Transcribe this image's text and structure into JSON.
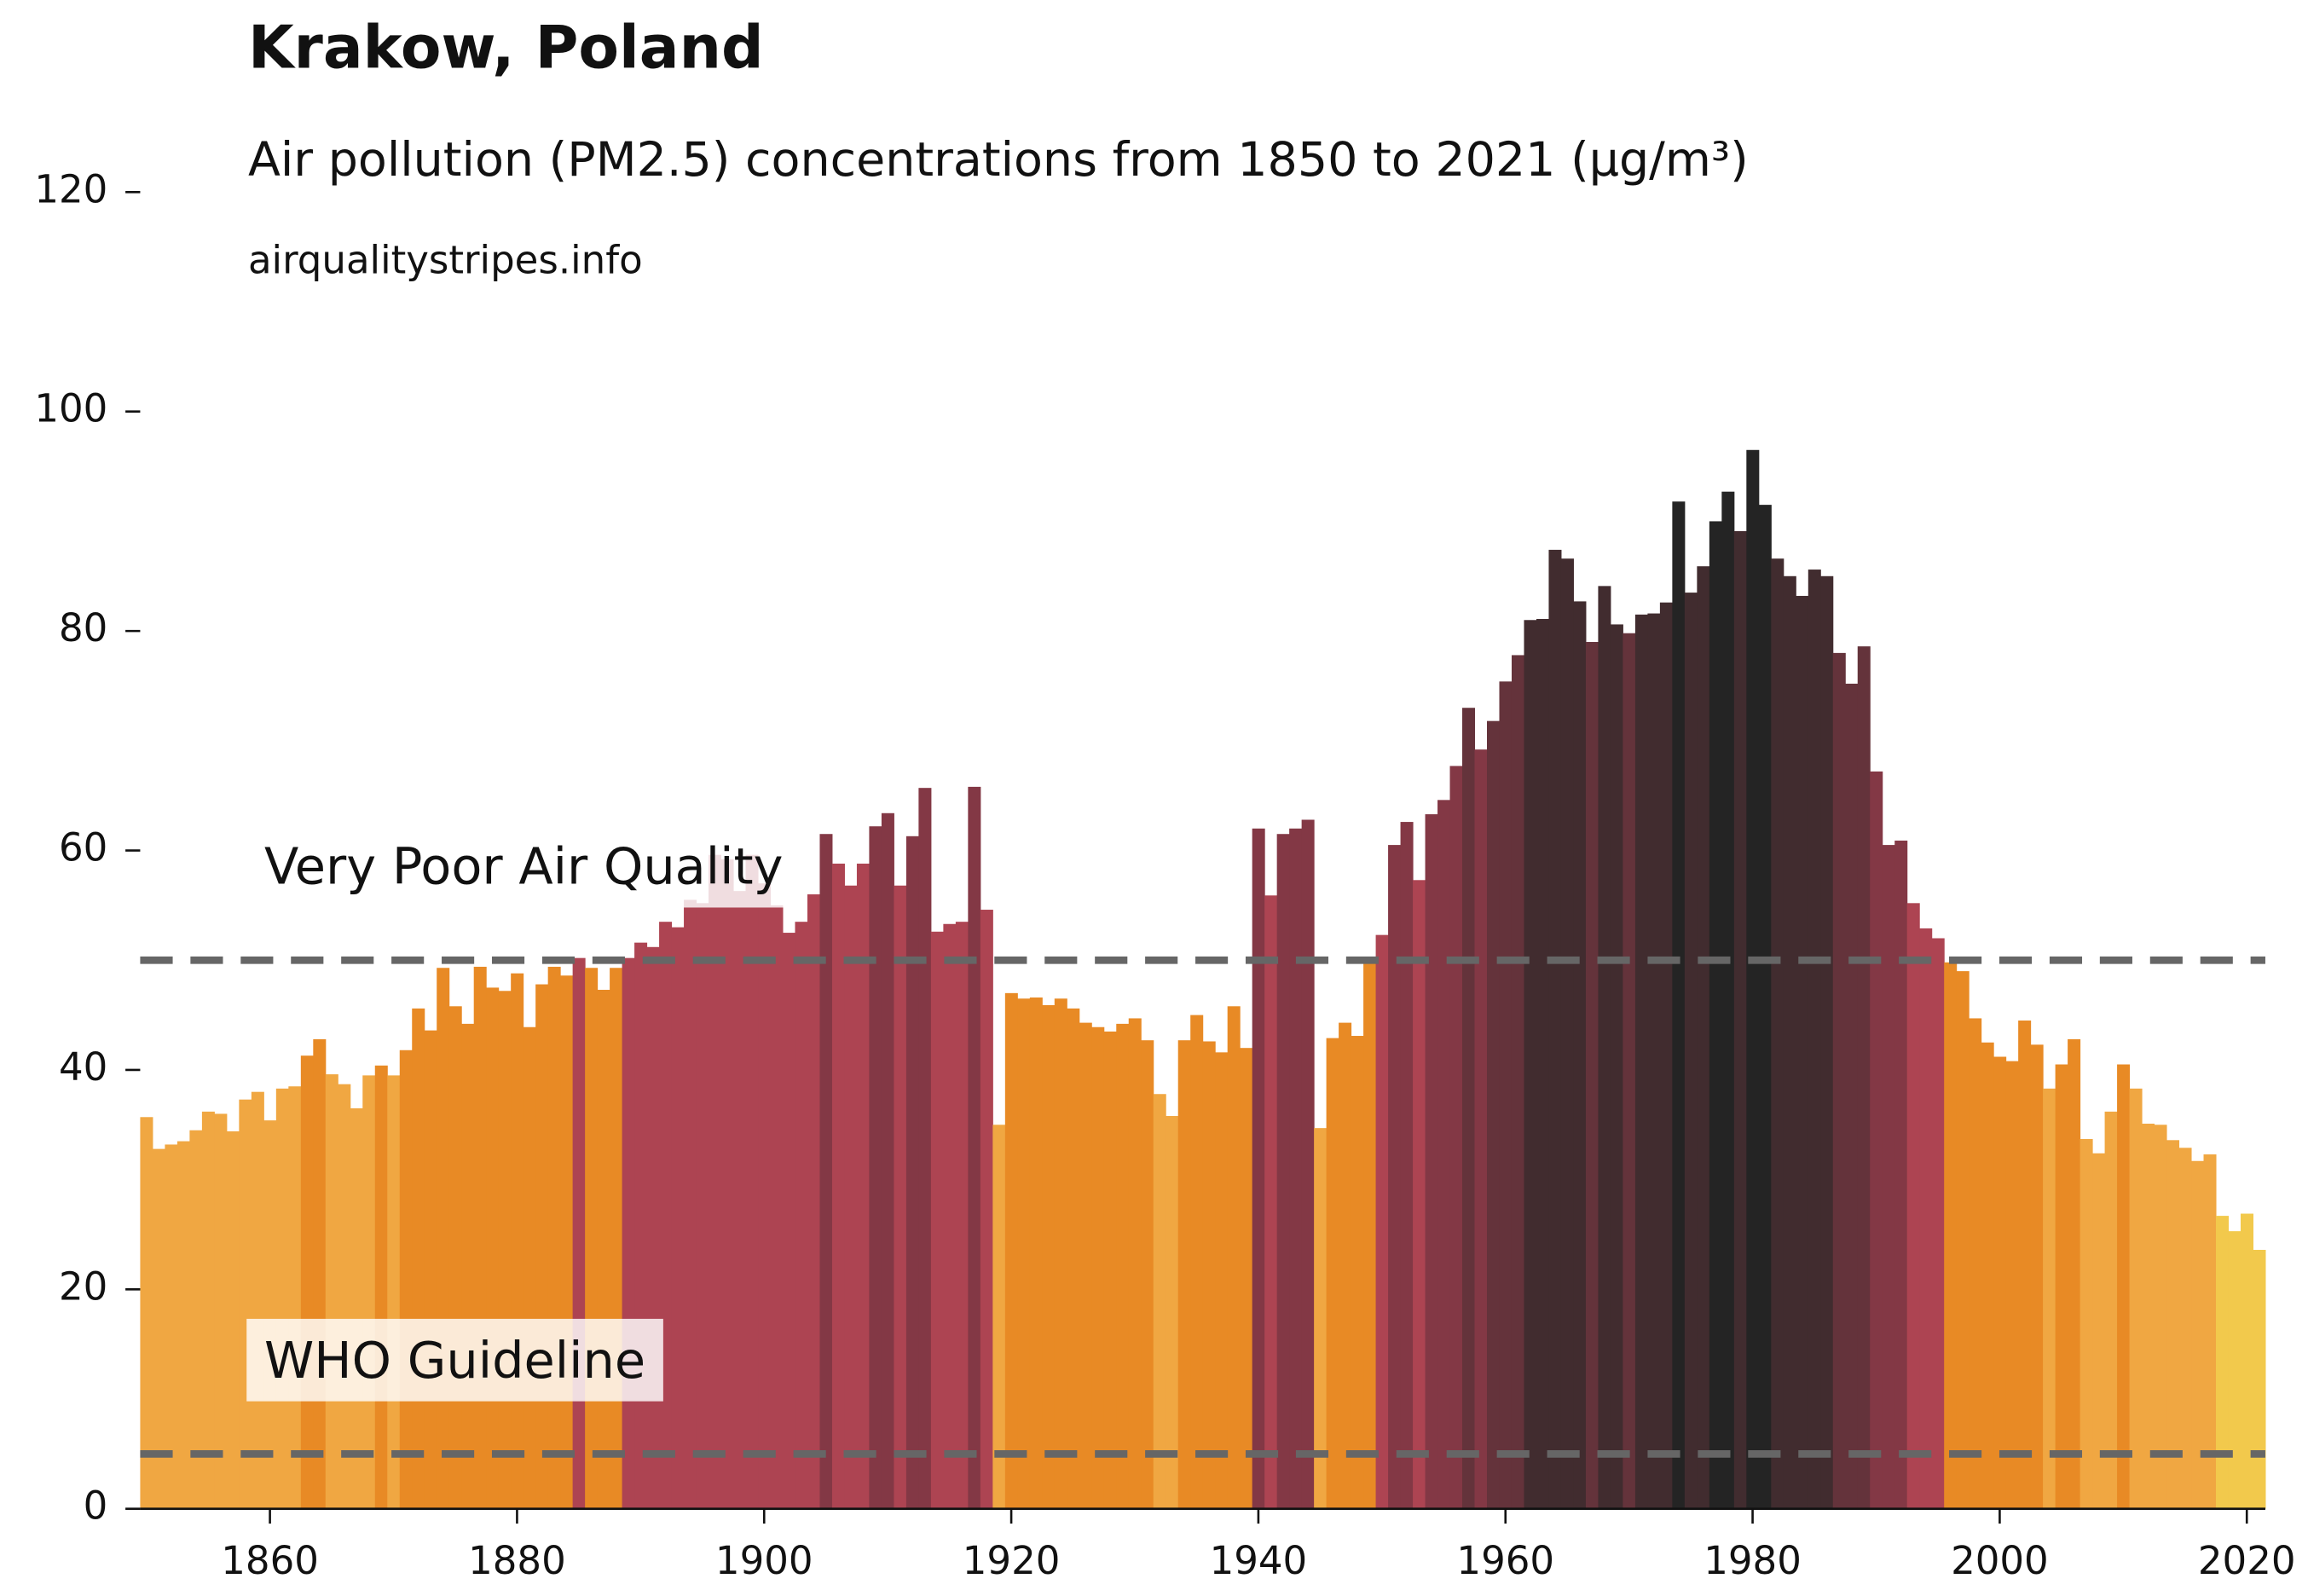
{
  "chart_data": {
    "type": "bar",
    "title": "Krakow, Poland",
    "subtitle": "Air pollution (PM2.5) concentrations from 1850 to 2021 (µg/m³)",
    "source": "airqualitystripes.info",
    "x": [
      1850,
      1851,
      1852,
      1853,
      1854,
      1855,
      1856,
      1857,
      1858,
      1859,
      1860,
      1861,
      1862,
      1863,
      1864,
      1865,
      1866,
      1867,
      1868,
      1869,
      1870,
      1871,
      1872,
      1873,
      1874,
      1875,
      1876,
      1877,
      1878,
      1879,
      1880,
      1881,
      1882,
      1883,
      1884,
      1885,
      1886,
      1887,
      1888,
      1889,
      1890,
      1891,
      1892,
      1893,
      1894,
      1895,
      1896,
      1897,
      1898,
      1899,
      1900,
      1901,
      1902,
      1903,
      1904,
      1905,
      1906,
      1907,
      1908,
      1909,
      1910,
      1911,
      1912,
      1913,
      1914,
      1915,
      1916,
      1917,
      1918,
      1919,
      1920,
      1921,
      1922,
      1923,
      1924,
      1925,
      1926,
      1927,
      1928,
      1929,
      1930,
      1931,
      1932,
      1933,
      1934,
      1935,
      1936,
      1937,
      1938,
      1939,
      1940,
      1941,
      1942,
      1943,
      1944,
      1945,
      1946,
      1947,
      1948,
      1949,
      1950,
      1951,
      1952,
      1953,
      1954,
      1955,
      1956,
      1957,
      1958,
      1959,
      1960,
      1961,
      1962,
      1963,
      1964,
      1965,
      1966,
      1967,
      1968,
      1969,
      1970,
      1971,
      1972,
      1973,
      1974,
      1975,
      1976,
      1977,
      1978,
      1979,
      1980,
      1981,
      1982,
      1983,
      1984,
      1985,
      1986,
      1987,
      1988,
      1989,
      1990,
      1991,
      1992,
      1993,
      1994,
      1995,
      1996,
      1997,
      1998,
      1999,
      2000,
      2001,
      2002,
      2003,
      2004,
      2005,
      2006,
      2007,
      2008,
      2009,
      2010,
      2011,
      2012,
      2013,
      2014,
      2015,
      2016,
      2017,
      2018,
      2019,
      2020,
      2021
    ],
    "values": [
      35.7,
      32.8,
      33.2,
      33.5,
      34.5,
      36.2,
      36.0,
      34.4,
      37.3,
      38.0,
      35.4,
      38.3,
      38.5,
      41.3,
      42.8,
      39.6,
      38.7,
      36.5,
      39.5,
      40.4,
      39.5,
      41.8,
      45.6,
      43.6,
      49.3,
      45.8,
      44.2,
      49.4,
      47.5,
      47.2,
      48.8,
      43.9,
      47.8,
      49.4,
      48.6,
      50.2,
      49.3,
      47.3,
      49.3,
      50.2,
      51.6,
      51.2,
      53.5,
      53.0,
      55.5,
      55.2,
      59.6,
      59.2,
      56.3,
      59.6,
      57.0,
      55.0,
      52.5,
      53.5,
      56.0,
      61.5,
      58.8,
      56.8,
      58.8,
      62.2,
      63.4,
      56.8,
      61.3,
      65.7,
      52.6,
      53.3,
      53.5,
      65.8,
      54.6,
      35.0,
      47.0,
      46.5,
      46.6,
      45.9,
      46.5,
      45.6,
      44.3,
      43.9,
      43.5,
      44.2,
      44.7,
      42.7,
      37.8,
      35.8,
      42.7,
      45.0,
      42.6,
      41.6,
      45.8,
      42.0,
      62.0,
      55.9,
      61.5,
      62.0,
      62.8,
      34.7,
      42.9,
      44.3,
      43.1,
      49.8,
      52.3,
      60.5,
      62.6,
      57.3,
      63.3,
      64.6,
      67.7,
      73.0,
      69.2,
      71.8,
      75.4,
      77.8,
      81.0,
      81.1,
      87.4,
      86.6,
      82.7,
      79.0,
      84.1,
      80.6,
      79.8,
      81.5,
      81.6,
      82.6,
      91.8,
      83.5,
      85.9,
      90.0,
      92.7,
      89.1,
      96.5,
      91.5,
      86.6,
      85.0,
      83.2,
      85.6,
      85.0,
      78.0,
      75.2,
      78.6,
      67.2,
      60.5,
      60.9,
      55.2,
      52.9,
      52.0,
      49.8,
      49.0,
      44.7,
      42.5,
      41.2,
      40.8,
      44.5,
      42.3,
      38.3,
      40.5,
      42.8,
      33.7,
      32.4,
      36.2,
      40.5,
      38.3,
      35.1,
      35.0,
      33.6,
      32.9,
      31.7,
      32.3,
      26.7,
      25.3,
      26.9,
      23.6
    ],
    "colors": [
      "#f0a742",
      "#f0a742",
      "#f0a742",
      "#f0a742",
      "#f0a742",
      "#f0a742",
      "#f0a742",
      "#f0a742",
      "#f0a742",
      "#f0a742",
      "#f0a742",
      "#f0a742",
      "#f0a742",
      "#e88a25",
      "#e88a25",
      "#f0a742",
      "#f0a742",
      "#f0a742",
      "#f0a742",
      "#e88a25",
      "#f0a742",
      "#e88a25",
      "#e88a25",
      "#e88a25",
      "#e88a25",
      "#e88a25",
      "#e88a25",
      "#e88a25",
      "#e88a25",
      "#e88a25",
      "#e88a25",
      "#e88a25",
      "#e88a25",
      "#e88a25",
      "#e88a25",
      "#ad4452",
      "#e88a25",
      "#e88a25",
      "#e88a25",
      "#ad4452",
      "#ad4452",
      "#ad4452",
      "#ad4452",
      "#ad4452",
      "#ad4452",
      "#ad4452",
      "#ad4452",
      "#ad4452",
      "#ad4452",
      "#ad4452",
      "#ad4452",
      "#ad4452",
      "#ad4452",
      "#ad4452",
      "#ad4452",
      "#833845",
      "#ad4452",
      "#ad4452",
      "#ad4452",
      "#833845",
      "#833845",
      "#ad4452",
      "#833845",
      "#833845",
      "#ad4452",
      "#ad4452",
      "#ad4452",
      "#833845",
      "#ad4452",
      "#f0a742",
      "#e88a25",
      "#e88a25",
      "#e88a25",
      "#e88a25",
      "#e88a25",
      "#e88a25",
      "#e88a25",
      "#e88a25",
      "#e88a25",
      "#e88a25",
      "#e88a25",
      "#e88a25",
      "#f0a742",
      "#f0a742",
      "#e88a25",
      "#e88a25",
      "#e88a25",
      "#e88a25",
      "#e88a25",
      "#e88a25",
      "#833845",
      "#ad4452",
      "#833845",
      "#833845",
      "#833845",
      "#f0a742",
      "#e88a25",
      "#e88a25",
      "#e88a25",
      "#e88a25",
      "#ad4452",
      "#833845",
      "#833845",
      "#ad4452",
      "#833845",
      "#833845",
      "#833845",
      "#64333b",
      "#833845",
      "#64333b",
      "#64333b",
      "#64333b",
      "#412c2f",
      "#412c2f",
      "#412c2f",
      "#412c2f",
      "#412c2f",
      "#64333b",
      "#412c2f",
      "#412c2f",
      "#64333b",
      "#412c2f",
      "#412c2f",
      "#412c2f",
      "#242424",
      "#412c2f",
      "#412c2f",
      "#242424",
      "#242424",
      "#412c2f",
      "#242424",
      "#242424",
      "#412c2f",
      "#412c2f",
      "#412c2f",
      "#412c2f",
      "#412c2f",
      "#64333b",
      "#64333b",
      "#64333b",
      "#833845",
      "#833845",
      "#833845",
      "#ad4452",
      "#ad4452",
      "#ad4452",
      "#e88a25",
      "#e88a25",
      "#e88a25",
      "#e88a25",
      "#e88a25",
      "#e88a25",
      "#e88a25",
      "#e88a25",
      "#f0a742",
      "#e88a25",
      "#e88a25",
      "#f0a742",
      "#f0a742",
      "#f0a742",
      "#e88a25",
      "#f0a742",
      "#f0a742",
      "#f0a742",
      "#f0a742",
      "#f0a742",
      "#f0a742",
      "#f0a742",
      "#f2c94c",
      "#f2c94c",
      "#f2c94c",
      "#f2c94c"
    ],
    "xlim": [
      1849.5,
      2021.5
    ],
    "xticks": [
      1860,
      1880,
      1900,
      1920,
      1940,
      1960,
      1980,
      2000,
      2020
    ],
    "ylim": [
      0,
      120
    ],
    "yticks": [
      0,
      20,
      40,
      60,
      80,
      100,
      120
    ],
    "reference_lines": [
      {
        "value": 50,
        "label": "Very Poor Air Quality"
      },
      {
        "value": 5,
        "label": "WHO Guideline"
      }
    ],
    "reference_color": "#666666"
  }
}
